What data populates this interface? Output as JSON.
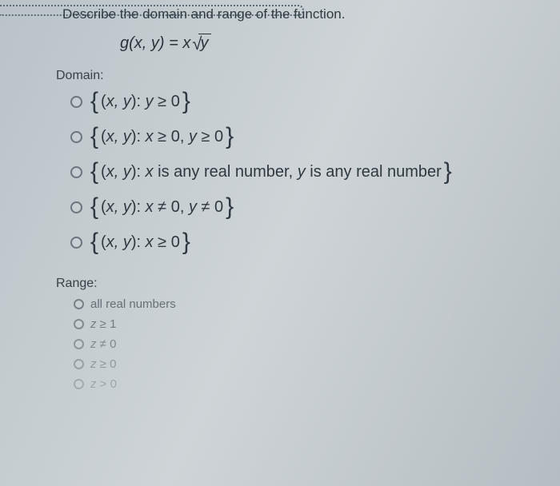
{
  "prompt": "Describe the domain and range of the function.",
  "formula": {
    "lhs": "g(x, y) = ",
    "outer": "x",
    "radicand": "y"
  },
  "domain": {
    "label": "Domain:",
    "options": [
      {
        "pre": "(",
        "vars": "x, y",
        "post": "): ",
        "cond_html": "<i>y</i> ≥ 0"
      },
      {
        "pre": "(",
        "vars": "x, y",
        "post": "): ",
        "cond_html": "<i>x</i> ≥ 0, <i>y</i> ≥ 0"
      },
      {
        "pre": "(",
        "vars": "x, y",
        "post": "): ",
        "cond_html": "<i>x</i> is any real number, <i>y</i> is any real number"
      },
      {
        "pre": "(",
        "vars": "x, y",
        "post": "): ",
        "cond_html": "<i>x</i> ≠ 0, <i>y</i> ≠ 0"
      },
      {
        "pre": "(",
        "vars": "x, y",
        "post": "): ",
        "cond_html": "<i>x</i> ≥ 0"
      }
    ]
  },
  "range": {
    "label": "Range:",
    "options": [
      {
        "html": "all real numbers",
        "fade": "fade5"
      },
      {
        "html": "<i>z</i> ≥ 1",
        "fade": "fade4"
      },
      {
        "html": "<i>z</i> ≠ 0",
        "fade": "fade3"
      },
      {
        "html": "<i>z</i> ≥ 0",
        "fade": "fade2"
      },
      {
        "html": "<i>z</i> > 0",
        "fade": "fade1"
      }
    ]
  },
  "colors": {
    "text": "#2e3840",
    "border_dots": "#5a6c78",
    "radio_border": "#6a757d"
  }
}
